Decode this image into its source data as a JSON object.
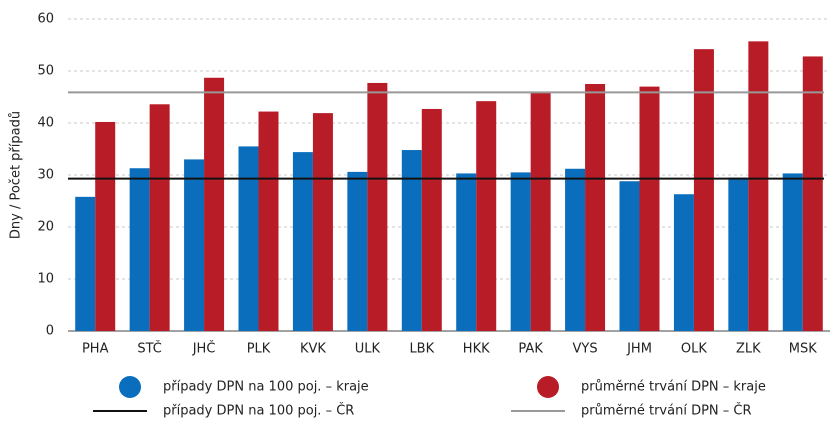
{
  "chart_data": {
    "type": "bar",
    "ylabel": "Dny / Počet případů",
    "categories": [
      "PHA",
      "STČ",
      "JHČ",
      "PLK",
      "KVK",
      "ULK",
      "LBK",
      "HKK",
      "PAK",
      "VYS",
      "JHM",
      "OLK",
      "ZLK",
      "MSK"
    ],
    "series": [
      {
        "name": "případy DPN na 100 poj. – kraje",
        "color": "#0a6ebd",
        "values": [
          25.8,
          31.3,
          33.0,
          35.5,
          34.4,
          30.6,
          34.8,
          30.3,
          30.5,
          31.2,
          28.8,
          26.3,
          29.5,
          30.3
        ]
      },
      {
        "name": "průměrné trvání DPN – kraje",
        "color": "#b81c26",
        "values": [
          40.2,
          43.6,
          48.7,
          42.2,
          41.9,
          47.7,
          42.7,
          44.2,
          46.0,
          47.5,
          47.0,
          54.2,
          55.7,
          52.8
        ]
      }
    ],
    "reference_lines": [
      {
        "name": "případy DPN na 100 poj. – ČR",
        "color": "#111111",
        "value": 29.3
      },
      {
        "name": "průměrné trvání DPN – ČR",
        "color": "#999999",
        "value": 45.9
      }
    ],
    "ylim": [
      0,
      60
    ],
    "yticks": [
      0,
      10,
      20,
      30,
      40,
      50,
      60
    ],
    "grid": true
  }
}
